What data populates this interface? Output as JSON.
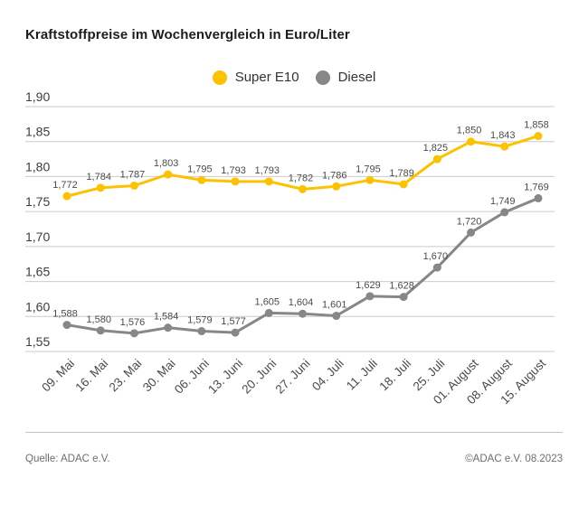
{
  "title": "Kraftstoffpreise im Wochenvergleich in Euro/Liter",
  "legend": {
    "items": [
      {
        "label": "Super E10",
        "color": "#fcc200"
      },
      {
        "label": "Diesel",
        "color": "#878787"
      }
    ]
  },
  "footer": {
    "source": "Quelle: ADAC e.V.",
    "copyright": "©ADAC e.V. 08.2023"
  },
  "chart_data": {
    "type": "line",
    "title": "Kraftstoffpreise im Wochenvergleich in Euro/Liter",
    "categories": [
      "09. Mai",
      "16. Mai",
      "23. Mai",
      "30. Mai",
      "06. Juni",
      "13. Juni",
      "20. Juni",
      "27. Juni",
      "04. Juli",
      "11. Juli",
      "18. Juli",
      "25. Juli",
      "01. August",
      "08. August",
      "15. August"
    ],
    "series": [
      {
        "name": "Super E10",
        "color": "#fcc200",
        "values": [
          1.772,
          1.784,
          1.787,
          1.803,
          1.795,
          1.793,
          1.793,
          1.782,
          1.786,
          1.795,
          1.789,
          1.825,
          1.85,
          1.843,
          1.858
        ],
        "value_labels": [
          "1,772",
          "1,784",
          "1,787",
          "1,803",
          "1,795",
          "1,793",
          "1,793",
          "1,782",
          "1,786",
          "1,795",
          "1,789",
          "1,825",
          "1,850",
          "1,843",
          "1,858"
        ]
      },
      {
        "name": "Diesel",
        "color": "#878787",
        "values": [
          1.588,
          1.58,
          1.576,
          1.584,
          1.579,
          1.577,
          1.605,
          1.604,
          1.601,
          1.629,
          1.628,
          1.67,
          1.72,
          1.749,
          1.769
        ],
        "value_labels": [
          "1,588",
          "1,580",
          "1,576",
          "1,584",
          "1,579",
          "1,577",
          "1,605",
          "1,604",
          "1,601",
          "1,629",
          "1,628",
          "1,670",
          "1,720",
          "1,749",
          "1,769"
        ]
      }
    ],
    "xlabel": "",
    "ylabel": "",
    "ylim": [
      1.55,
      1.9
    ],
    "ytick_labels": [
      "1,90",
      "1,85",
      "1,80",
      "1,75",
      "1,70",
      "1,65",
      "1,60",
      "1,55"
    ],
    "ytick_values": [
      1.9,
      1.85,
      1.8,
      1.75,
      1.7,
      1.65,
      1.6,
      1.55
    ],
    "grid": true,
    "legend_position": "top-center",
    "grid_color": "#cbcbcb",
    "label_color": "#4b4b4b",
    "tick_color": "#3d3d3d"
  }
}
